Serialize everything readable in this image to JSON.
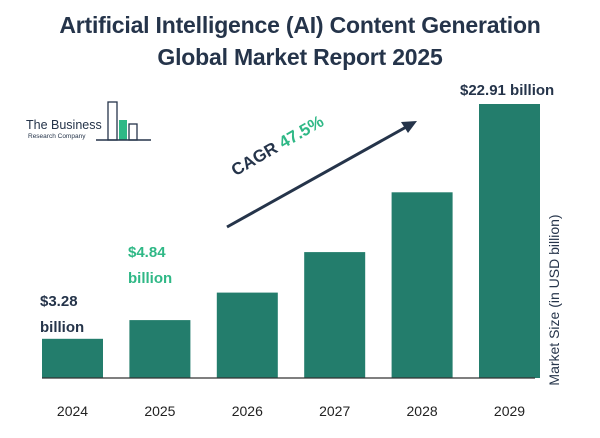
{
  "title_lines": [
    "Artificial Intelligence (AI) Content Generation",
    "Global Market Report 2025"
  ],
  "logo": {
    "name": "The Business",
    "subname": "Research Company"
  },
  "cagr": {
    "label": "CAGR",
    "value": "47.5%"
  },
  "colors": {
    "bar": "#237d6c",
    "text": "#25344a",
    "accent": "#2fb886",
    "axis": "#333333"
  },
  "chart_data": {
    "type": "bar",
    "title": "Artificial Intelligence (AI) Content Generation Global Market Report 2025",
    "categories": [
      "2024",
      "2025",
      "2026",
      "2027",
      "2028",
      "2029"
    ],
    "values": [
      3.28,
      4.84,
      7.14,
      10.53,
      15.53,
      22.91
    ],
    "ylabel": "Market Size (in USD billion)",
    "xlabel": "",
    "ylim": [
      0,
      22.91
    ],
    "grid": false,
    "data_labels": {
      "2024": [
        "$3.28",
        "billion"
      ],
      "2025": [
        "$4.84",
        "billion"
      ],
      "2029": [
        "$22.91 billion"
      ]
    }
  }
}
